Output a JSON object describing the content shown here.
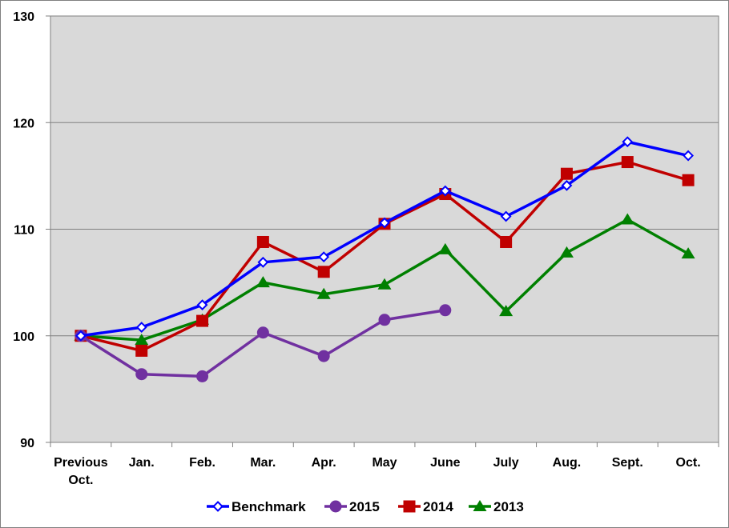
{
  "chart_data": {
    "type": "line",
    "categories": [
      [
        "Previous",
        "Oct."
      ],
      [
        "Jan."
      ],
      [
        "Feb."
      ],
      [
        "Mar."
      ],
      [
        "Apr."
      ],
      [
        "May"
      ],
      [
        "June"
      ],
      [
        "July"
      ],
      [
        "Aug."
      ],
      [
        "Sept."
      ],
      [
        "Oct."
      ]
    ],
    "ylim": [
      90,
      130
    ],
    "yticks": [
      90,
      100,
      110,
      120,
      130
    ],
    "grid": true,
    "legend_position": "bottom",
    "series": [
      {
        "name": "Benchmark",
        "color": "#0000ff",
        "marker": "diamond",
        "values": [
          100,
          100.8,
          102.9,
          106.9,
          107.4,
          110.6,
          113.6,
          111.2,
          114.1,
          118.2,
          116.9
        ]
      },
      {
        "name": "2015",
        "color": "#7030a0",
        "marker": "circle",
        "values": [
          100,
          96.4,
          96.2,
          100.3,
          98.1,
          101.5,
          102.4,
          null,
          null,
          null,
          null
        ]
      },
      {
        "name": "2014",
        "color": "#c00000",
        "marker": "square",
        "values": [
          100,
          98.6,
          101.4,
          108.8,
          106.0,
          110.5,
          113.3,
          108.8,
          115.2,
          116.3,
          114.6
        ]
      },
      {
        "name": "2013",
        "color": "#008000",
        "marker": "triangle",
        "values": [
          100,
          99.6,
          101.5,
          105.0,
          103.9,
          104.8,
          108.1,
          102.3,
          107.8,
          110.9,
          107.7
        ]
      }
    ]
  }
}
